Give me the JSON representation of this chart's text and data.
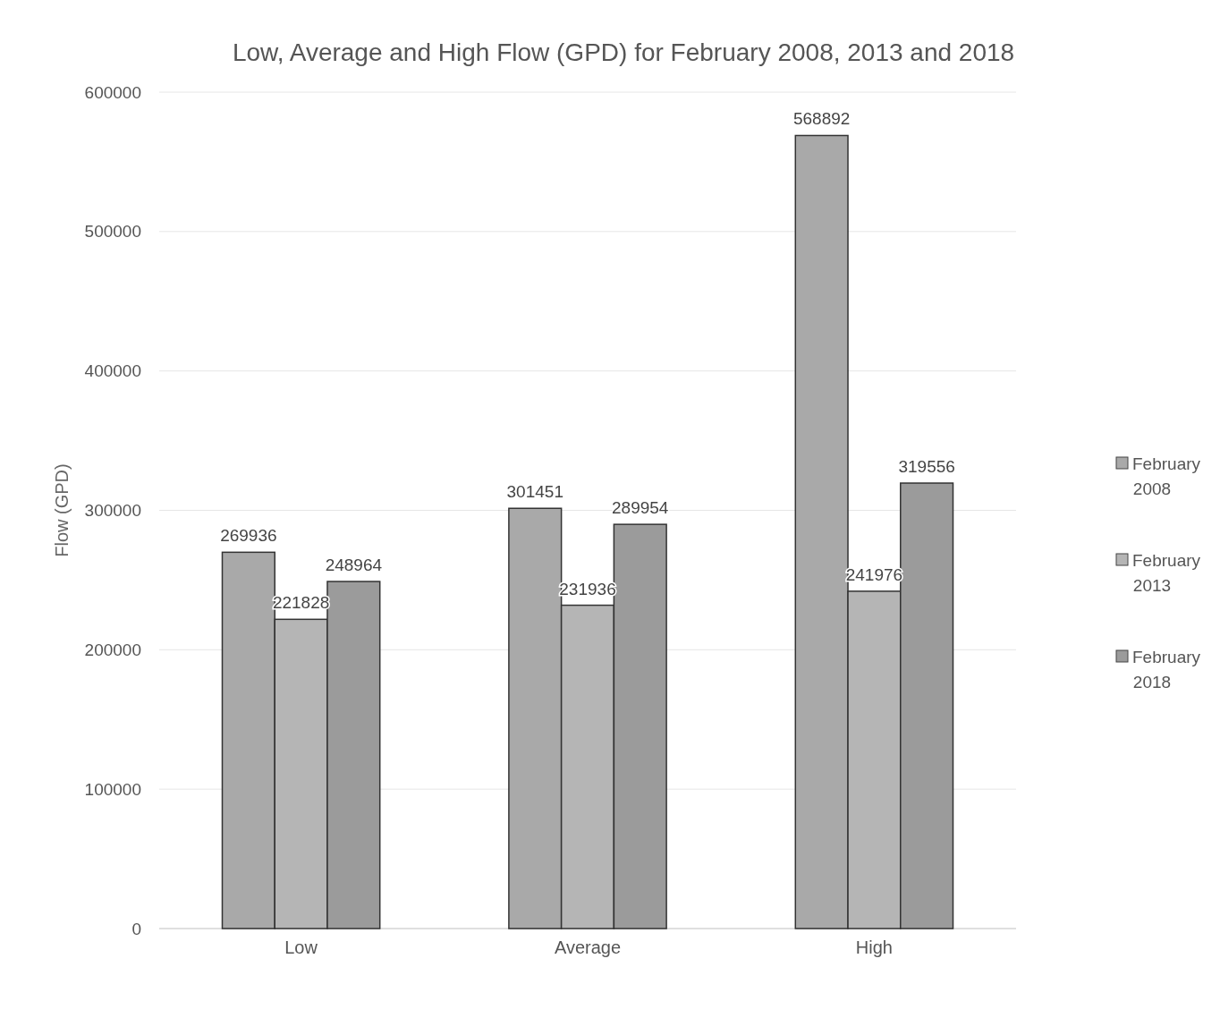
{
  "chart_data": {
    "type": "bar",
    "title": "Low, Average and High Flow (GPD) for February 2008, 2013 and 2018",
    "ylabel": "Flow (GPD)",
    "categories": [
      "Low",
      "Average",
      "High"
    ],
    "series": [
      {
        "name": "February 2008",
        "color": "#a9a9a9",
        "values": [
          269936,
          301451,
          568892
        ]
      },
      {
        "name": "February 2013",
        "color": "#b5b5b5",
        "values": [
          221828,
          231936,
          241976
        ]
      },
      {
        "name": "February 2018",
        "color": "#9b9b9b",
        "values": [
          248964,
          289954,
          319556
        ]
      }
    ],
    "ylim": [
      0,
      600000
    ],
    "yticks": [
      0,
      100000,
      200000,
      300000,
      400000,
      500000,
      600000
    ],
    "grid": "y",
    "legend": "right",
    "data_labels": true
  }
}
